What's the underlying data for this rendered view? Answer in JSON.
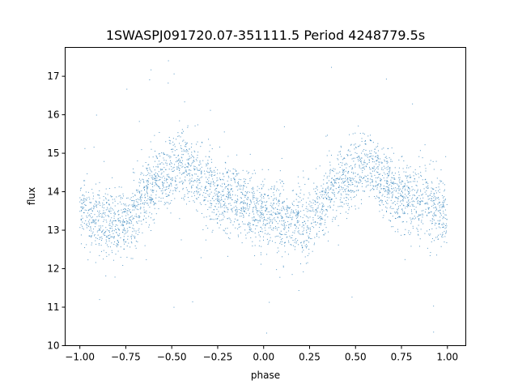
{
  "chart_data": {
    "type": "scatter",
    "title": "1SWASPJ091720.07-351111.5 Period 4248779.5s",
    "xlabel": "phase",
    "ylabel": "flux",
    "xlim": [
      -1.08,
      1.1
    ],
    "ylim": [
      10.0,
      17.75
    ],
    "xticks": [
      -1.0,
      -0.75,
      -0.5,
      -0.25,
      0.0,
      0.25,
      0.5,
      0.75,
      1.0
    ],
    "xtick_labels": [
      "−1.00",
      "−0.75",
      "−0.50",
      "−0.25",
      "0.00",
      "0.25",
      "0.50",
      "0.75",
      "1.00"
    ],
    "yticks": [
      10,
      11,
      12,
      13,
      14,
      15,
      16,
      17
    ],
    "ytick_labels": [
      "10",
      "11",
      "12",
      "13",
      "14",
      "15",
      "16",
      "17"
    ],
    "grid": false,
    "marker_color": "#1f77b4",
    "phase_range": [
      -1.0,
      1.0
    ],
    "profile_phase": [
      0.0,
      0.05,
      0.1,
      0.15,
      0.2,
      0.25,
      0.3,
      0.35,
      0.4,
      0.45,
      0.5,
      0.55,
      0.6,
      0.65,
      0.7,
      0.75,
      0.8,
      0.85,
      0.9,
      0.95,
      1.0
    ],
    "profile_flux": [
      13.6,
      13.4,
      13.3,
      13.2,
      13.1,
      13.2,
      13.5,
      13.9,
      14.2,
      14.3,
      14.5,
      14.7,
      14.6,
      14.3,
      14.1,
      13.9,
      13.8,
      13.8,
      13.7,
      13.5,
      13.3
    ],
    "scatter_sigma": 0.45
  }
}
